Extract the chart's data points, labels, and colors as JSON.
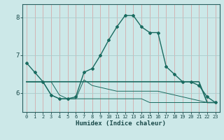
{
  "xlabel": "Humidex (Indice chaleur)",
  "background_color": "#cce8e8",
  "grid_color": "#aacccc",
  "line_color": "#1a6b60",
  "hours": [
    0,
    1,
    2,
    3,
    4,
    5,
    6,
    7,
    8,
    9,
    10,
    11,
    12,
    13,
    14,
    15,
    16,
    17,
    18,
    19,
    20,
    21,
    22,
    23
  ],
  "line1": [
    6.8,
    6.55,
    6.3,
    5.95,
    5.85,
    5.85,
    5.9,
    6.55,
    6.65,
    7.0,
    7.4,
    7.75,
    8.05,
    8.05,
    7.75,
    7.6,
    7.6,
    6.7,
    6.5,
    6.3,
    6.3,
    6.2,
    5.9,
    5.75
  ],
  "line2": [
    6.3,
    6.3,
    6.3,
    6.3,
    6.3,
    6.3,
    6.3,
    6.3,
    6.3,
    6.3,
    6.3,
    6.3,
    6.3,
    6.3,
    6.3,
    6.3,
    6.3,
    6.3,
    6.3,
    6.3,
    6.3,
    6.3,
    5.75,
    5.75
  ],
  "line3": [
    6.3,
    6.3,
    6.3,
    6.3,
    5.95,
    5.85,
    5.85,
    6.35,
    6.2,
    6.15,
    6.1,
    6.05,
    6.05,
    6.05,
    6.05,
    6.05,
    6.05,
    6.0,
    5.95,
    5.9,
    5.85,
    5.8,
    5.75,
    5.75
  ],
  "line4": [
    6.3,
    6.3,
    6.3,
    5.95,
    5.85,
    5.85,
    5.85,
    5.85,
    5.85,
    5.85,
    5.85,
    5.85,
    5.85,
    5.85,
    5.85,
    5.75,
    5.75,
    5.75,
    5.75,
    5.75,
    5.75,
    5.75,
    5.75,
    5.75
  ],
  "xlim": [
    -0.5,
    23.5
  ],
  "ylim": [
    5.5,
    8.35
  ],
  "yticks": [
    6,
    7,
    8
  ],
  "xticks": [
    0,
    1,
    2,
    3,
    4,
    5,
    6,
    7,
    8,
    9,
    10,
    11,
    12,
    13,
    14,
    15,
    16,
    17,
    18,
    19,
    20,
    21,
    22,
    23
  ]
}
